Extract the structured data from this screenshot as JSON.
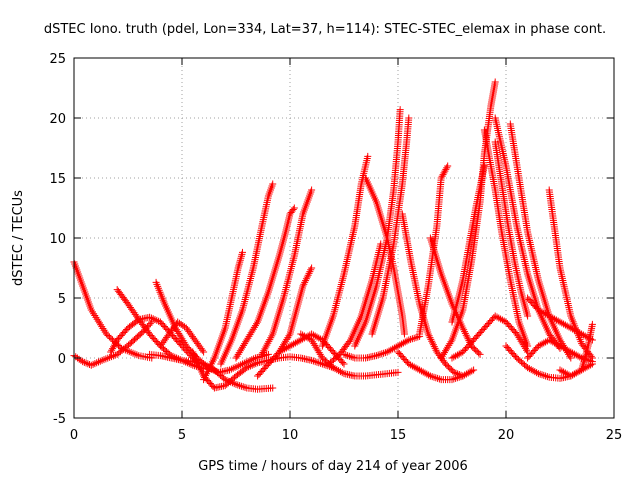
{
  "chart_data": {
    "type": "scatter",
    "title": "dSTEC Iono. truth (pdel, Lon=334, Lat=37, h=114): STEC-STEC_elemax in phase cont.",
    "xlabel": "GPS time / hours of day 214 of year 2006",
    "ylabel": "dSTEC  / TECUs",
    "xlim": [
      0,
      25
    ],
    "ylim": [
      -5,
      25
    ],
    "x_ticks": [
      0,
      5,
      10,
      15,
      20,
      25
    ],
    "y_ticks": [
      -5,
      0,
      5,
      10,
      15,
      20,
      25
    ],
    "x_tick_labels": [
      "0",
      "5",
      "10",
      "15",
      "20",
      "25"
    ],
    "y_tick_labels": [
      "-5",
      "0",
      "5",
      "10",
      "15",
      "20",
      "25"
    ],
    "grid": true,
    "marker": "plus",
    "color": "#ff0000",
    "series": [
      {
        "x": [
          0.0,
          0.3,
          0.8,
          1.5,
          2.2,
          3.0,
          3.6
        ],
        "y": [
          8.0,
          6.5,
          4.0,
          2.0,
          0.8,
          0.2,
          0.0
        ]
      },
      {
        "x": [
          0.0,
          0.4,
          0.8,
          1.3,
          2.0,
          2.6,
          3.2,
          3.6
        ],
        "y": [
          0.2,
          -0.3,
          -0.6,
          -0.2,
          0.3,
          1.2,
          2.2,
          3.0
        ]
      },
      {
        "x": [
          1.7,
          2.0,
          2.5,
          3.0,
          3.5,
          4.0,
          4.5,
          5.0,
          5.6
        ],
        "y": [
          0.5,
          1.5,
          2.5,
          3.2,
          3.4,
          3.0,
          2.0,
          1.0,
          -0.2
        ]
      },
      {
        "x": [
          2.0,
          2.5,
          3.0,
          3.5,
          4.0,
          4.5,
          5.0,
          5.5,
          6.0
        ],
        "y": [
          5.7,
          4.5,
          3.2,
          2.0,
          1.0,
          0.2,
          -0.2,
          -0.6,
          -0.9
        ]
      },
      {
        "x": [
          3.8,
          4.2,
          4.7,
          5.2,
          5.7,
          6.2,
          6.7,
          7.2,
          7.8,
          8.4,
          9.0
        ],
        "y": [
          6.3,
          4.5,
          2.5,
          1.0,
          0.0,
          -0.8,
          -1.2,
          -1.0,
          -0.5,
          0.0,
          0.3
        ]
      },
      {
        "x": [
          3.5,
          4.0,
          4.5,
          5.0,
          5.5,
          6.0,
          6.5,
          7.0,
          7.5,
          8.0,
          8.5,
          9.2
        ],
        "y": [
          0.3,
          0.2,
          0.0,
          -0.2,
          -0.3,
          -0.5,
          -1.0,
          -1.8,
          -2.2,
          -2.5,
          -2.6,
          -2.5
        ]
      },
      {
        "x": [
          4.0,
          4.4,
          4.8,
          5.2,
          5.6,
          6.0
        ],
        "y": [
          1.0,
          2.0,
          3.0,
          2.5,
          1.5,
          0.5
        ]
      },
      {
        "x": [
          5.5,
          6.0,
          6.5,
          7.0,
          7.5,
          8.0,
          8.5,
          9.0,
          9.5,
          10.0,
          10.5,
          11.0,
          11.5,
          12.0
        ],
        "y": [
          0.5,
          -1.5,
          -2.5,
          -2.3,
          -1.5,
          -0.8,
          -0.4,
          -0.2,
          0.0,
          0.1,
          0.0,
          -0.2,
          -0.5,
          -0.8
        ]
      },
      {
        "x": [
          6.0,
          6.5,
          7.0,
          7.3,
          7.6,
          7.8
        ],
        "y": [
          -1.8,
          0.0,
          2.5,
          5.0,
          7.5,
          8.8
        ]
      },
      {
        "x": [
          6.8,
          7.3,
          7.8,
          8.3,
          8.7,
          9.0,
          9.2
        ],
        "y": [
          -0.5,
          1.5,
          4.0,
          7.5,
          11.0,
          13.5,
          14.5
        ]
      },
      {
        "x": [
          7.5,
          8.0,
          8.5,
          9.0,
          9.5,
          9.8,
          10.0,
          10.2
        ],
        "y": [
          0.0,
          1.5,
          3.0,
          5.5,
          8.5,
          10.5,
          12.0,
          12.5
        ]
      },
      {
        "x": [
          8.7,
          9.2,
          9.7,
          10.2,
          10.6,
          11.0
        ],
        "y": [
          0.3,
          2.0,
          5.0,
          8.5,
          12.0,
          14.0
        ]
      },
      {
        "x": [
          8.5,
          9.0,
          9.5,
          10.0,
          10.3,
          10.6,
          11.0
        ],
        "y": [
          -1.5,
          -0.5,
          0.5,
          2.0,
          4.0,
          6.0,
          7.5
        ]
      },
      {
        "x": [
          9.5,
          10.0,
          10.5,
          11.0,
          11.5,
          12.0,
          12.5
        ],
        "y": [
          0.5,
          1.0,
          1.5,
          2.0,
          1.5,
          0.5,
          -0.5
        ]
      },
      {
        "x": [
          10.5,
          11.0,
          11.5,
          12.0,
          12.5,
          13.0,
          13.5,
          14.0,
          14.5,
          15.0
        ],
        "y": [
          2.0,
          1.5,
          0.0,
          -0.8,
          -1.3,
          -1.5,
          -1.5,
          -1.4,
          -1.3,
          -1.2
        ]
      },
      {
        "x": [
          11.5,
          12.0,
          12.5,
          13.0,
          13.3,
          13.6
        ],
        "y": [
          1.0,
          3.5,
          7.0,
          11.0,
          14.5,
          16.8
        ]
      },
      {
        "x": [
          11.8,
          12.3,
          12.8,
          13.3,
          13.8,
          14.2
        ],
        "y": [
          -0.5,
          0.3,
          1.5,
          3.5,
          6.5,
          9.5
        ]
      },
      {
        "x": [
          13.5,
          14.0,
          14.5,
          14.8,
          15.0,
          15.2,
          15.3
        ],
        "y": [
          15.0,
          13.0,
          10.0,
          7.5,
          5.5,
          3.5,
          2.0
        ]
      },
      {
        "x": [
          13.0,
          13.5,
          14.0,
          14.5,
          14.8,
          15.0,
          15.1
        ],
        "y": [
          1.0,
          3.0,
          6.0,
          10.0,
          14.0,
          18.0,
          20.7
        ]
      },
      {
        "x": [
          13.8,
          14.3,
          14.8,
          15.2,
          15.4,
          15.5
        ],
        "y": [
          2.0,
          5.0,
          9.5,
          14.5,
          18.0,
          20.0
        ]
      },
      {
        "x": [
          12.5,
          13.0,
          13.5,
          14.0,
          14.5,
          15.0,
          15.5,
          16.0
        ],
        "y": [
          0.3,
          0.0,
          0.0,
          0.2,
          0.5,
          1.0,
          1.5,
          1.8
        ]
      },
      {
        "x": [
          15.2,
          15.6,
          16.0,
          16.4,
          16.8,
          17.2,
          17.6,
          18.0
        ],
        "y": [
          12.0,
          8.0,
          4.5,
          2.0,
          0.5,
          -0.5,
          -1.2,
          -1.5
        ]
      },
      {
        "x": [
          15.0,
          15.5,
          16.0,
          16.5,
          17.0,
          17.5,
          18.0,
          18.5
        ],
        "y": [
          0.5,
          -0.5,
          -1.0,
          -1.5,
          -1.8,
          -1.8,
          -1.5,
          -1.0
        ]
      },
      {
        "x": [
          16.0,
          16.4,
          16.8,
          17.0,
          17.3
        ],
        "y": [
          2.0,
          6.0,
          11.0,
          15.0,
          16.0
        ]
      },
      {
        "x": [
          16.5,
          17.0,
          17.5,
          18.0,
          18.4,
          18.8
        ],
        "y": [
          10.0,
          7.0,
          4.5,
          2.5,
          1.0,
          0.3
        ]
      },
      {
        "x": [
          17.0,
          17.5,
          18.0,
          18.4,
          18.8,
          19.0,
          19.3,
          19.5
        ],
        "y": [
          0.0,
          1.5,
          4.0,
          8.0,
          13.0,
          17.0,
          21.0,
          23.0
        ]
      },
      {
        "x": [
          17.5,
          17.8,
          18.0,
          18.3,
          18.6,
          19.0
        ],
        "y": [
          3.0,
          5.0,
          6.5,
          9.5,
          12.5,
          16.0
        ]
      },
      {
        "x": [
          17.5,
          18.0,
          18.5,
          19.0,
          19.5,
          20.0,
          20.5,
          21.0
        ],
        "y": [
          0.0,
          0.5,
          1.5,
          2.5,
          3.5,
          3.0,
          2.0,
          0.5
        ]
      },
      {
        "x": [
          19.0,
          19.2,
          19.5,
          19.8,
          20.2,
          20.6,
          21.0
        ],
        "y": [
          19.0,
          17.0,
          14.0,
          10.5,
          6.5,
          3.0,
          1.0
        ]
      },
      {
        "x": [
          19.5,
          19.8,
          20.1,
          20.4,
          20.7,
          21.0
        ],
        "y": [
          18.0,
          14.5,
          11.0,
          8.0,
          5.5,
          3.5
        ]
      },
      {
        "x": [
          19.5,
          20.0,
          20.5,
          21.0,
          21.5,
          22.0,
          22.5
        ],
        "y": [
          20.0,
          16.0,
          11.0,
          7.0,
          4.0,
          2.0,
          0.8
        ]
      },
      {
        "x": [
          20.2,
          20.6,
          21.0,
          21.5,
          22.0,
          22.5,
          23.0
        ],
        "y": [
          19.5,
          15.0,
          10.5,
          6.5,
          3.5,
          1.5,
          0.0
        ]
      },
      {
        "x": [
          20.0,
          20.5,
          21.0,
          21.5,
          22.0,
          22.5,
          23.0,
          23.5,
          24.0
        ],
        "y": [
          1.0,
          0.0,
          -0.8,
          -1.3,
          -1.6,
          -1.7,
          -1.5,
          -1.0,
          -0.5
        ]
      },
      {
        "x": [
          22.0,
          22.5,
          23.0,
          23.5,
          24.0
        ],
        "y": [
          14.0,
          7.5,
          3.5,
          1.2,
          0.0
        ]
      },
      {
        "x": [
          21.0,
          21.5,
          22.0,
          22.5,
          23.0,
          23.5,
          24.0
        ],
        "y": [
          0.0,
          1.0,
          1.5,
          1.0,
          0.5,
          0.0,
          -0.3
        ]
      },
      {
        "x": [
          22.5,
          23.0,
          23.5,
          23.8,
          24.0
        ],
        "y": [
          -1.0,
          -1.5,
          -1.0,
          1.0,
          2.8
        ]
      },
      {
        "x": [
          21.0,
          21.5,
          22.0,
          22.5,
          23.0,
          23.5,
          24.0
        ],
        "y": [
          5.0,
          4.0,
          3.5,
          3.0,
          2.5,
          2.0,
          1.5
        ]
      }
    ]
  }
}
